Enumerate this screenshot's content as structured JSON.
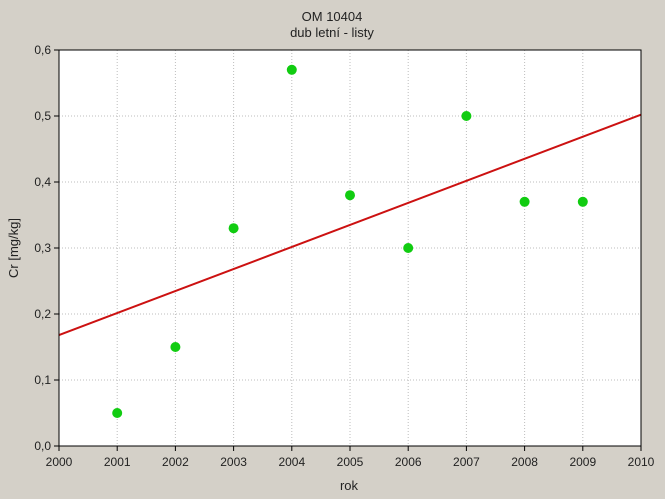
{
  "chart_data": {
    "type": "scatter",
    "title": "OM 10404",
    "subtitle": "dub letní - listy",
    "xlabel": "rok",
    "ylabel": "Cr [mg/kg]",
    "xlim": [
      2000,
      2010
    ],
    "ylim": [
      0,
      0.6
    ],
    "x_ticks": [
      "2000",
      "2001",
      "2002",
      "2003",
      "2004",
      "2005",
      "2006",
      "2007",
      "2008",
      "2009",
      "2010"
    ],
    "y_ticks": [
      "0,0",
      "0,1",
      "0,2",
      "0,3",
      "0,4",
      "0,5",
      "0,6"
    ],
    "x_tick_values": [
      2000,
      2001,
      2002,
      2003,
      2004,
      2005,
      2006,
      2007,
      2008,
      2009,
      2010
    ],
    "y_tick_values": [
      0,
      0.1,
      0.2,
      0.3,
      0.4,
      0.5,
      0.6
    ],
    "grid": true,
    "points": {
      "x": [
        2001,
        2002,
        2003,
        2004,
        2005,
        2006,
        2007,
        2008,
        2009
      ],
      "y": [
        0.05,
        0.15,
        0.33,
        0.57,
        0.38,
        0.3,
        0.5,
        0.37,
        0.37
      ],
      "color": "#11cc11"
    },
    "trendline": {
      "x": [
        2000,
        2010
      ],
      "y": [
        0.168,
        0.502
      ],
      "color": "#cc1111"
    }
  },
  "colors": {
    "background": "#d4d0c8",
    "plot_background": "#ffffff",
    "grid": "#bdbdbd"
  }
}
